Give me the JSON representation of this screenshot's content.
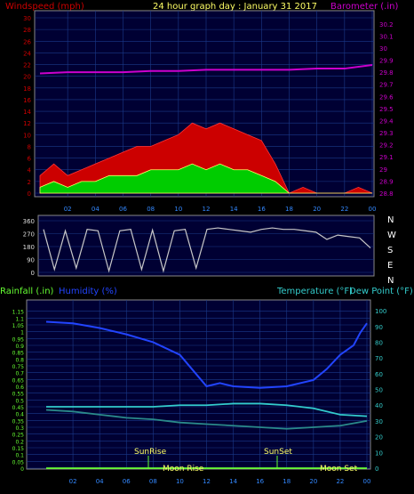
{
  "header": {
    "left_label": "Windspeed (mph)",
    "center_label": "24 hour graph day : January 31 2017",
    "right_label": "Barometer (.in)"
  },
  "bottom_header": {
    "rainfall_label": "Rainfall (.in)",
    "humidity_label": "Humidity (%)",
    "temperature_label": "Temperature (°F)",
    "dewpoint_label": "Dew Point (°F)"
  },
  "markers": {
    "sunrise": "SunRise",
    "sunset": "SunSet",
    "moonrise": "Moon Rise",
    "moonset": "Moon Set"
  },
  "colors": {
    "background": "#000000",
    "plot": "#000033",
    "grid": "#1a3a8a",
    "wind_gust": "#cc0000",
    "wind_avg": "#00cc00",
    "barometer": "#cc00cc",
    "direction": "#c8c8c8",
    "humidity": "#2244ff",
    "temperature": "#33cccc",
    "dewpoint": "#2a8a8a",
    "rain": "#66ff33"
  },
  "chart_data": [
    {
      "type": "area",
      "id": "wind",
      "x_ticks": [
        "02",
        "04",
        "06",
        "08",
        "10",
        "12",
        "14",
        "16",
        "18",
        "20",
        "22",
        "00"
      ],
      "left_ticks": [
        "0",
        "2",
        "4",
        "6",
        "8",
        "10",
        "12",
        "14",
        "16",
        "18",
        "20",
        "22",
        "24",
        "26",
        "28",
        "30"
      ],
      "right_ticks": [
        "28.8",
        "28.9",
        "29",
        "29.1",
        "29.2",
        "29.3",
        "29.4",
        "29.5",
        "29.6",
        "29.7",
        "29.8",
        "29.9",
        "30",
        "30.1",
        "30.2"
      ],
      "ylim_left": [
        0,
        30
      ],
      "ylim_right": [
        28.8,
        30.25
      ],
      "series": [
        {
          "name": "Windspeed (mph)",
          "hours": [
            0,
            1,
            2,
            3,
            4,
            5,
            6,
            7,
            8,
            9,
            10,
            11,
            12,
            13,
            14,
            15,
            16,
            17,
            18,
            19,
            20,
            21,
            22,
            23,
            24
          ],
          "gust": [
            3,
            5,
            3,
            4,
            5,
            6,
            7,
            8,
            8,
            9,
            10,
            12,
            11,
            12,
            11,
            10,
            9,
            5,
            0,
            1,
            0,
            0,
            0,
            1,
            0
          ],
          "avg": [
            1,
            2,
            1,
            2,
            2,
            3,
            3,
            3,
            4,
            4,
            4,
            5,
            4,
            5,
            4,
            4,
            3,
            2,
            0,
            0,
            0,
            0,
            0,
            0,
            0
          ]
        },
        {
          "name": "Barometer (.in)",
          "hours": [
            0,
            2,
            4,
            6,
            8,
            10,
            12,
            14,
            16,
            18,
            20,
            22,
            24
          ],
          "values": [
            29.79,
            29.8,
            29.8,
            29.8,
            29.81,
            29.81,
            29.82,
            29.82,
            29.82,
            29.82,
            29.83,
            29.83,
            29.86
          ]
        }
      ]
    },
    {
      "type": "line",
      "id": "wind_direction",
      "y_ticks": [
        "360",
        "270",
        "180",
        "90",
        "0"
      ],
      "compass": [
        "N",
        "W",
        "S",
        "E",
        "N"
      ],
      "ylim": [
        0,
        360
      ],
      "series": [
        {
          "name": "Wind Direction",
          "hours": [
            0,
            0.8,
            1.6,
            2.4,
            3.2,
            4,
            4.8,
            5.6,
            6.4,
            7.2,
            8,
            8.8,
            9.6,
            10.4,
            11.2,
            12,
            12.8,
            13.6,
            14.4,
            15.2,
            16,
            16.8,
            17.6,
            18.4,
            19.2,
            20,
            20.8,
            21.6,
            22.4,
            23.2,
            24
          ],
          "values": [
            300,
            20,
            290,
            30,
            300,
            290,
            10,
            290,
            300,
            20,
            295,
            10,
            290,
            300,
            30,
            300,
            310,
            300,
            290,
            280,
            300,
            310,
            300,
            300,
            290,
            280,
            230,
            260,
            250,
            240,
            170
          ]
        }
      ]
    },
    {
      "type": "line",
      "id": "temp_hum",
      "x_ticks": [
        "02",
        "04",
        "06",
        "08",
        "10",
        "12",
        "14",
        "16",
        "18",
        "20",
        "22",
        "00"
      ],
      "left_ticks": [
        "0",
        "0.05",
        "0.1",
        "0.15",
        "0.2",
        "0.25",
        "0.3",
        "0.35",
        "0.4",
        "0.45",
        "0.5",
        "0.55",
        "0.6",
        "0.65",
        "0.7",
        "0.75",
        "0.8",
        "0.85",
        "0.9",
        "0.95",
        "1",
        "1.05",
        "1.1",
        "1.15"
      ],
      "right_ticks": [
        "0",
        "10",
        "20",
        "30",
        "40",
        "50",
        "60",
        "70",
        "80",
        "90",
        "100"
      ],
      "ylim_left": [
        0,
        1.2
      ],
      "ylim_right": [
        0,
        104
      ],
      "series": [
        {
          "name": "Humidity (%)",
          "hours": [
            0,
            2,
            4,
            6,
            8,
            10,
            11,
            12,
            13,
            14,
            16,
            18,
            20,
            21,
            22,
            23,
            23.5,
            24
          ],
          "values": [
            93,
            92,
            89,
            85,
            80,
            72,
            62,
            52,
            54,
            52,
            51,
            52,
            56,
            63,
            72,
            78,
            86,
            92
          ]
        },
        {
          "name": "Temperature (°F)",
          "hours": [
            0,
            2,
            4,
            6,
            8,
            10,
            12,
            14,
            16,
            18,
            20,
            22,
            24
          ],
          "values": [
            39,
            39,
            39,
            39,
            39,
            40,
            40,
            41,
            41,
            40,
            38,
            34,
            33
          ]
        },
        {
          "name": "Dew Point (°F)",
          "hours": [
            0,
            2,
            4,
            6,
            8,
            10,
            12,
            14,
            16,
            18,
            20,
            22,
            24
          ],
          "values": [
            37,
            36,
            34,
            32,
            31,
            29,
            28,
            27,
            26,
            25,
            26,
            27,
            30
          ]
        },
        {
          "name": "Rainfall (.in)",
          "hours": [
            0,
            24
          ],
          "values": [
            0,
            0
          ]
        }
      ]
    }
  ]
}
